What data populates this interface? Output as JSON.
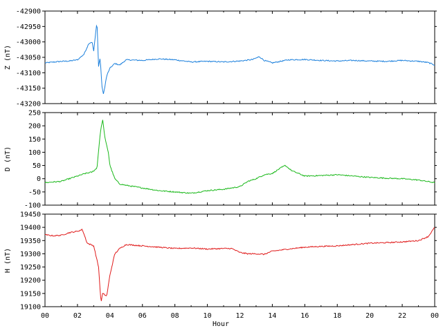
{
  "chart_data": [
    {
      "type": "line",
      "ylabel": "Z (nT)",
      "ylim": [
        -43200,
        -42900
      ],
      "yticks": [
        "-42900",
        "-42950",
        "-43000",
        "-43050",
        "-43100",
        "-43150",
        "-43200"
      ],
      "color": "#1a7fdc",
      "x": [
        0,
        1,
        1.5,
        2,
        2.4,
        2.7,
        2.9,
        3.0,
        3.2,
        3.3,
        3.4,
        3.5,
        3.6,
        3.8,
        4.0,
        4.3,
        4.6,
        5,
        6,
        7,
        8,
        9,
        10,
        11,
        12,
        12.8,
        13.2,
        13.5,
        14,
        15,
        16,
        17,
        18,
        19,
        20,
        21,
        22,
        23,
        23.6,
        24
      ],
      "y": [
        -43068,
        -43063,
        -43062,
        -43058,
        -43040,
        -43005,
        -43000,
        -43030,
        -42932,
        -43080,
        -43050,
        -43140,
        -43170,
        -43110,
        -43085,
        -43070,
        -43075,
        -43058,
        -43060,
        -43055,
        -43058,
        -43065,
        -43063,
        -43065,
        -43062,
        -43057,
        -43048,
        -43060,
        -43068,
        -43058,
        -43057,
        -43060,
        -43062,
        -43060,
        -43062,
        -43063,
        -43060,
        -43063,
        -43067,
        -43075
      ]
    },
    {
      "type": "line",
      "ylabel": "D (nT)",
      "ylim": [
        -100,
        250
      ],
      "yticks": [
        "250",
        "200",
        "150",
        "100",
        "50",
        "0",
        "-50",
        "-100"
      ],
      "color": "#1ab81a",
      "x": [
        0,
        1,
        2,
        2.5,
        2.9,
        3.2,
        3.4,
        3.55,
        3.7,
        3.9,
        4.0,
        4.3,
        4.6,
        5,
        6,
        7,
        8,
        9,
        10,
        11,
        11.5,
        12,
        12.5,
        13,
        13.5,
        14,
        14.5,
        14.8,
        15.2,
        16,
        17,
        18,
        19,
        20,
        21,
        22,
        23,
        24
      ],
      "y": [
        -15,
        -10,
        10,
        20,
        25,
        40,
        170,
        225,
        150,
        100,
        50,
        0,
        -20,
        -25,
        -35,
        -45,
        -50,
        -55,
        -45,
        -40,
        -35,
        -30,
        -10,
        0,
        15,
        20,
        40,
        50,
        30,
        10,
        12,
        15,
        10,
        5,
        2,
        0,
        -5,
        -15
      ]
    },
    {
      "type": "line",
      "ylabel": "H (nT)",
      "ylim": [
        19100,
        19450
      ],
      "yticks": [
        "19450",
        "19400",
        "19350",
        "19300",
        "19250",
        "19200",
        "19150",
        "19100"
      ],
      "color": "#e01a1a",
      "x": [
        0,
        0.5,
        1,
        1.5,
        2,
        2.3,
        2.6,
        3.0,
        3.3,
        3.45,
        3.55,
        3.8,
        4.0,
        4.3,
        4.6,
        5,
        6,
        7,
        8,
        9,
        10,
        11,
        11.5,
        12,
        12.5,
        13,
        13.5,
        14,
        15,
        16,
        17,
        18,
        19,
        20,
        21,
        22,
        23,
        23.6,
        24
      ],
      "y": [
        19372,
        19368,
        19370,
        19380,
        19385,
        19392,
        19340,
        19330,
        19250,
        19115,
        19150,
        19140,
        19220,
        19300,
        19320,
        19335,
        19330,
        19325,
        19320,
        19322,
        19318,
        19320,
        19320,
        19305,
        19300,
        19300,
        19298,
        19310,
        19318,
        19325,
        19328,
        19330,
        19335,
        19340,
        19342,
        19345,
        19350,
        19365,
        19400
      ]
    }
  ],
  "xaxis": {
    "label": "Hour",
    "ticks": [
      "00",
      "02",
      "04",
      "06",
      "08",
      "10",
      "12",
      "14",
      "16",
      "18",
      "20",
      "22",
      "00"
    ],
    "range": [
      0,
      24
    ]
  }
}
